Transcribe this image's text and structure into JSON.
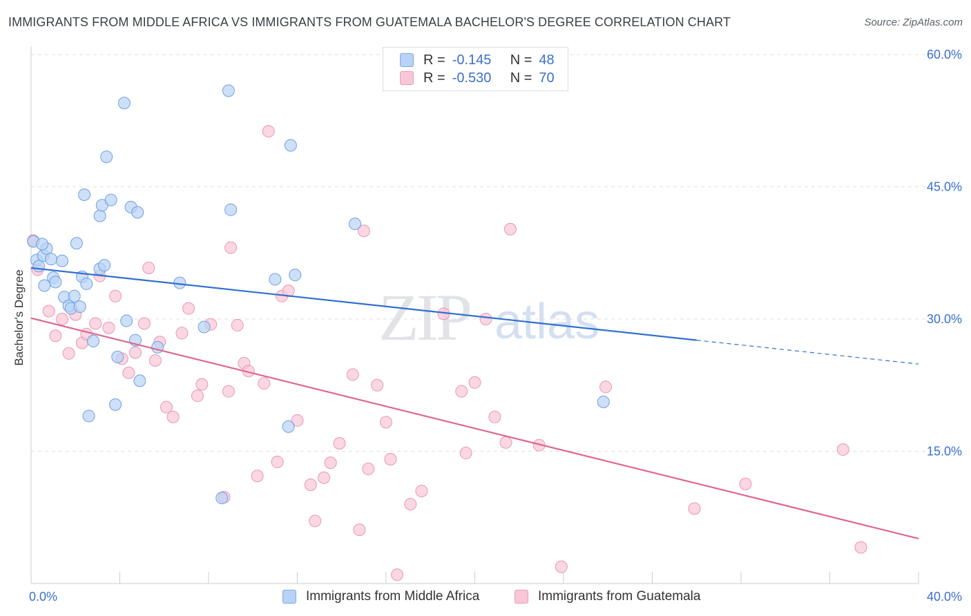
{
  "header": {
    "title": "IMMIGRANTS FROM MIDDLE AFRICA VS IMMIGRANTS FROM GUATEMALA BACHELOR'S DEGREE CORRELATION CHART",
    "source": "Source: ZipAtlas.com"
  },
  "watermark": {
    "zip": "ZIP",
    "atlas": "atlas"
  },
  "legend": {
    "r_label": "R =",
    "n_label": "N =",
    "series": [
      {
        "r": "-0.145",
        "n": "48",
        "fill": "#b8d3f5",
        "stroke": "#7aa8e6"
      },
      {
        "r": "-0.530",
        "n": "70",
        "fill": "#f8c6d6",
        "stroke": "#ec9ab6"
      }
    ]
  },
  "colors": {
    "blue_fill": "#b8d3f5",
    "blue_stroke": "#6e9fe0",
    "blue_line": "#2f6fcf",
    "pink_fill": "#f8c6d6",
    "pink_stroke": "#e896b3",
    "pink_line": "#e0668f",
    "axis_label": "#3a6fcf",
    "grid": "#dcdfe4"
  },
  "chart_data": {
    "type": "scatter",
    "title": "IMMIGRANTS FROM MIDDLE AFRICA VS IMMIGRANTS FROM GUATEMALA BACHELOR'S DEGREE CORRELATION CHART",
    "xlabel": "",
    "ylabel": "Bachelor's Degree",
    "xlim": [
      0,
      40
    ],
    "ylim": [
      0,
      60
    ],
    "x_tick_labels": [
      "0.0%",
      "40.0%"
    ],
    "y_ticks": [
      15,
      30,
      45,
      60
    ],
    "y_tick_labels": [
      "15.0%",
      "30.0%",
      "45.0%",
      "60.0%"
    ],
    "grid": "horizontal dashed",
    "legend_position": "top-center",
    "series": [
      {
        "name": "Immigrants from Middle Africa",
        "color": "#b8d3f5",
        "trend": {
          "x": [
            0,
            30.0
          ],
          "y": [
            35.8,
            27.6
          ],
          "dashed_extension_to": [
            40,
            24.9
          ]
        },
        "points": [
          [
            0.1,
            38.8
          ],
          [
            0.25,
            36.7
          ],
          [
            0.35,
            36.0
          ],
          [
            0.55,
            37.2
          ],
          [
            0.6,
            33.8
          ],
          [
            0.7,
            38.0
          ],
          [
            0.9,
            36.8
          ],
          [
            1.0,
            34.7
          ],
          [
            1.1,
            34.2
          ],
          [
            1.4,
            36.6
          ],
          [
            1.5,
            32.5
          ],
          [
            1.7,
            31.5
          ],
          [
            1.8,
            31.2
          ],
          [
            1.95,
            32.6
          ],
          [
            2.05,
            38.6
          ],
          [
            2.2,
            31.4
          ],
          [
            2.3,
            34.8
          ],
          [
            2.4,
            44.1
          ],
          [
            2.5,
            34.0
          ],
          [
            2.6,
            19.0
          ],
          [
            2.8,
            27.5
          ],
          [
            3.1,
            35.7
          ],
          [
            3.1,
            41.7
          ],
          [
            3.2,
            42.9
          ],
          [
            3.3,
            36.1
          ],
          [
            3.4,
            48.4
          ],
          [
            3.6,
            43.5
          ],
          [
            3.8,
            20.3
          ],
          [
            3.9,
            25.7
          ],
          [
            4.2,
            54.5
          ],
          [
            4.3,
            29.8
          ],
          [
            4.5,
            42.7
          ],
          [
            4.7,
            27.6
          ],
          [
            4.8,
            42.1
          ],
          [
            4.9,
            23.0
          ],
          [
            5.7,
            26.8
          ],
          [
            6.7,
            34.1
          ],
          [
            7.8,
            29.1
          ],
          [
            8.6,
            9.7
          ],
          [
            8.9,
            55.9
          ],
          [
            9.0,
            42.4
          ],
          [
            11.0,
            34.5
          ],
          [
            11.6,
            17.8
          ],
          [
            11.7,
            49.7
          ],
          [
            11.9,
            35.0
          ],
          [
            14.6,
            40.8
          ],
          [
            25.8,
            20.6
          ],
          [
            0.5,
            38.5
          ]
        ]
      },
      {
        "name": "Immigrants from Guatemala",
        "color": "#f8c6d6",
        "trend": {
          "x": [
            0,
            40
          ],
          "y": [
            30.1,
            5.1
          ]
        },
        "points": [
          [
            0.1,
            38.9
          ],
          [
            0.3,
            35.6
          ],
          [
            0.8,
            30.9
          ],
          [
            1.1,
            28.1
          ],
          [
            1.4,
            30.0
          ],
          [
            1.7,
            26.1
          ],
          [
            2.0,
            30.5
          ],
          [
            2.3,
            27.3
          ],
          [
            2.5,
            28.3
          ],
          [
            2.9,
            29.5
          ],
          [
            3.1,
            34.9
          ],
          [
            3.5,
            29.0
          ],
          [
            3.8,
            32.6
          ],
          [
            4.1,
            25.5
          ],
          [
            4.4,
            23.9
          ],
          [
            4.7,
            26.2
          ],
          [
            5.1,
            29.5
          ],
          [
            5.3,
            35.8
          ],
          [
            5.6,
            25.3
          ],
          [
            5.8,
            27.4
          ],
          [
            6.1,
            20.0
          ],
          [
            6.4,
            18.9
          ],
          [
            6.8,
            28.4
          ],
          [
            7.1,
            31.2
          ],
          [
            7.5,
            21.3
          ],
          [
            7.7,
            22.6
          ],
          [
            8.1,
            29.4
          ],
          [
            8.7,
            9.8
          ],
          [
            8.9,
            21.8
          ],
          [
            9.0,
            38.1
          ],
          [
            9.3,
            29.3
          ],
          [
            9.6,
            25.0
          ],
          [
            9.8,
            24.1
          ],
          [
            10.2,
            12.2
          ],
          [
            10.5,
            22.7
          ],
          [
            10.7,
            51.3
          ],
          [
            11.1,
            13.8
          ],
          [
            11.3,
            32.6
          ],
          [
            11.6,
            33.2
          ],
          [
            12.0,
            18.5
          ],
          [
            12.6,
            11.2
          ],
          [
            12.8,
            7.1
          ],
          [
            13.2,
            12.0
          ],
          [
            13.5,
            13.7
          ],
          [
            13.9,
            15.9
          ],
          [
            14.5,
            23.7
          ],
          [
            14.8,
            6.1
          ],
          [
            15.0,
            40.0
          ],
          [
            15.2,
            13.0
          ],
          [
            15.6,
            22.5
          ],
          [
            16.0,
            18.3
          ],
          [
            16.2,
            14.1
          ],
          [
            16.5,
            1.0
          ],
          [
            17.1,
            9.0
          ],
          [
            17.6,
            10.5
          ],
          [
            18.6,
            30.6
          ],
          [
            19.4,
            21.8
          ],
          [
            19.6,
            14.8
          ],
          [
            20.0,
            22.8
          ],
          [
            20.5,
            30.0
          ],
          [
            20.9,
            18.9
          ],
          [
            21.4,
            16.0
          ],
          [
            21.6,
            40.2
          ],
          [
            22.9,
            15.7
          ],
          [
            23.9,
            1.9
          ],
          [
            25.9,
            22.3
          ],
          [
            29.9,
            8.5
          ],
          [
            32.2,
            11.3
          ],
          [
            36.6,
            15.2
          ],
          [
            37.4,
            4.1
          ]
        ]
      }
    ]
  },
  "bottom_legend": {
    "items": [
      "Immigrants from Middle Africa",
      "Immigrants from Guatemala"
    ]
  }
}
